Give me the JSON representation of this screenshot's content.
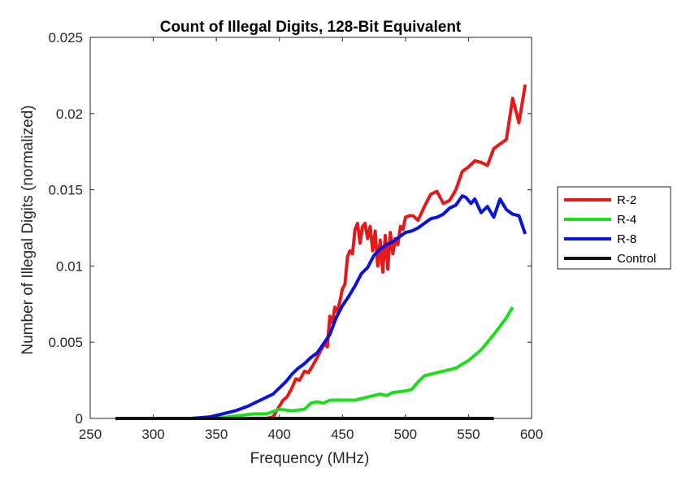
{
  "chart_data": {
    "type": "line",
    "title": "Count of Illegal Digits, 128-Bit Equivalent",
    "xlabel": "Frequency (MHz)",
    "ylabel": "Number of Illegal Digits (normalized)",
    "xlim": [
      250,
      600
    ],
    "ylim": [
      0,
      0.025
    ],
    "xticks": [
      250,
      300,
      350,
      400,
      450,
      500,
      550,
      600
    ],
    "xtick_labels": [
      "250",
      "300",
      "350",
      "400",
      "450",
      "500",
      "550",
      "600"
    ],
    "yticks": [
      0,
      0.005,
      0.01,
      0.015,
      0.02,
      0.025
    ],
    "ytick_labels": [
      "0",
      "0.005",
      "0.01",
      "0.015",
      "0.02",
      "0.025"
    ],
    "grid": false,
    "legend_position": "outside-right",
    "series": [
      {
        "name": "R-2",
        "color": "#e31a1c",
        "x": [
          270,
          300,
          350,
          380,
          390,
          395,
          400,
          403,
          406,
          410,
          413,
          416,
          420,
          423,
          426,
          430,
          433,
          436,
          438,
          440,
          442,
          444,
          446,
          448,
          450,
          452,
          454,
          456,
          458,
          460,
          462,
          464,
          466,
          468,
          470,
          472,
          474,
          476,
          478,
          480,
          482,
          484,
          486,
          488,
          490,
          492,
          494,
          496,
          498,
          500,
          503,
          506,
          510,
          515,
          520,
          525,
          530,
          535,
          540,
          545,
          550,
          555,
          560,
          565,
          570,
          575,
          580,
          585,
          590,
          595
        ],
        "y": [
          0,
          0,
          0,
          0,
          0,
          0.0001,
          0.0008,
          0.0012,
          0.0014,
          0.002,
          0.0026,
          0.0025,
          0.0031,
          0.003,
          0.0034,
          0.004,
          0.0045,
          0.0049,
          0.0047,
          0.0067,
          0.0063,
          0.0073,
          0.007,
          0.0077,
          0.0085,
          0.0088,
          0.0106,
          0.011,
          0.0108,
          0.0124,
          0.0128,
          0.0115,
          0.0126,
          0.0128,
          0.0118,
          0.0126,
          0.011,
          0.0123,
          0.01,
          0.0117,
          0.0096,
          0.012,
          0.0098,
          0.0122,
          0.0108,
          0.0118,
          0.0114,
          0.0126,
          0.0124,
          0.0132,
          0.0133,
          0.0133,
          0.013,
          0.0139,
          0.0147,
          0.0149,
          0.0141,
          0.0143,
          0.015,
          0.0162,
          0.0165,
          0.0169,
          0.0168,
          0.0166,
          0.0177,
          0.018,
          0.0183,
          0.021,
          0.0194,
          0.0219
        ]
      },
      {
        "name": "R-4",
        "color": "#1fdc1f",
        "x": [
          270,
          300,
          350,
          370,
          380,
          390,
          400,
          410,
          420,
          425,
          430,
          435,
          440,
          450,
          460,
          470,
          480,
          485,
          490,
          500,
          505,
          510,
          515,
          520,
          525,
          530,
          540,
          550,
          560,
          570,
          580,
          585
        ],
        "y": [
          0,
          0,
          0,
          0.0002,
          0.0003,
          0.0003,
          0.0006,
          0.0005,
          0.0006,
          0.001,
          0.0011,
          0.001,
          0.0012,
          0.0012,
          0.0012,
          0.0014,
          0.0016,
          0.0015,
          0.0017,
          0.0018,
          0.0019,
          0.0024,
          0.0028,
          0.0029,
          0.003,
          0.0031,
          0.0033,
          0.0038,
          0.0045,
          0.0055,
          0.0066,
          0.0073
        ]
      },
      {
        "name": "R-8",
        "color": "#0a14d9",
        "x": [
          270,
          300,
          330,
          345,
          355,
          365,
          375,
          385,
          395,
          400,
          405,
          410,
          415,
          420,
          425,
          430,
          435,
          440,
          445,
          450,
          455,
          460,
          465,
          470,
          475,
          480,
          485,
          490,
          495,
          500,
          505,
          510,
          515,
          520,
          525,
          530,
          535,
          540,
          545,
          548,
          552,
          555,
          560,
          565,
          570,
          575,
          580,
          585,
          590,
          595
        ],
        "y": [
          0,
          0,
          0,
          0.0001,
          0.0003,
          0.0005,
          0.0008,
          0.0012,
          0.0016,
          0.002,
          0.0024,
          0.0029,
          0.0033,
          0.0036,
          0.004,
          0.0043,
          0.0049,
          0.0055,
          0.0066,
          0.0074,
          0.008,
          0.0087,
          0.0095,
          0.0099,
          0.0107,
          0.0111,
          0.0114,
          0.0116,
          0.0119,
          0.0122,
          0.0123,
          0.0125,
          0.0128,
          0.0131,
          0.0132,
          0.0134,
          0.0138,
          0.014,
          0.0146,
          0.0145,
          0.0141,
          0.0144,
          0.0135,
          0.0139,
          0.0132,
          0.0144,
          0.0137,
          0.0134,
          0.0133,
          0.0121
        ]
      },
      {
        "name": "Control",
        "color": "#111111",
        "x": [
          270,
          570
        ],
        "y": [
          0,
          0
        ]
      }
    ]
  }
}
